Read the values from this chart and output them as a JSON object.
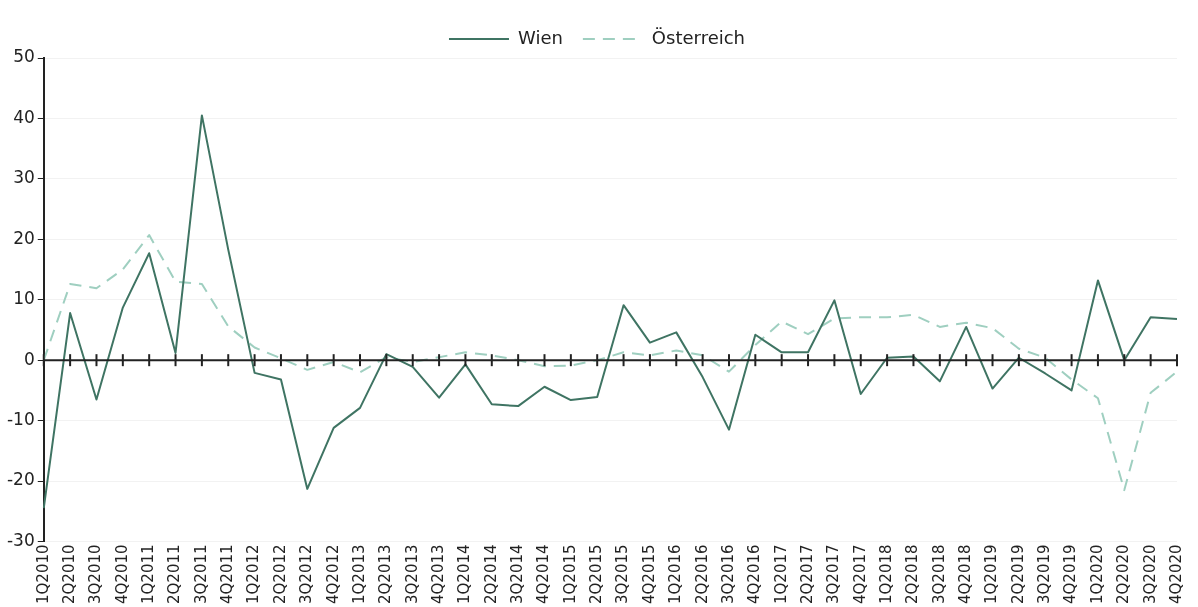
{
  "chart_data": {
    "type": "line",
    "categories": [
      "1Q2010",
      "2Q2010",
      "3Q2010",
      "4Q2010",
      "1Q2011",
      "2Q2011",
      "3Q2011",
      "4Q2011",
      "1Q2012",
      "2Q2012",
      "3Q2012",
      "4Q2012",
      "1Q2013",
      "2Q2013",
      "3Q2013",
      "4Q2013",
      "1Q2014",
      "2Q2014",
      "3Q2014",
      "4Q2014",
      "1Q2015",
      "2Q2015",
      "3Q2015",
      "4Q2015",
      "1Q2016",
      "2Q2016",
      "3Q2016",
      "4Q2016",
      "1Q2017",
      "2Q2017",
      "3Q2017",
      "4Q2017",
      "1Q2018",
      "2Q2018",
      "3Q2018",
      "4Q2018",
      "1Q2019",
      "2Q2019",
      "3Q2019",
      "4Q2019",
      "1Q2020",
      "2Q2020",
      "3Q2020",
      "4Q2020"
    ],
    "series": [
      {
        "name": "Wien",
        "color": "#3f7463",
        "line_style": "solid",
        "values": [
          -24.5,
          7.8,
          -6.5,
          8.7,
          17.7,
          1.2,
          40.5,
          18.3,
          -2.1,
          -3.2,
          -21.3,
          -11.2,
          -7.9,
          1,
          -1.1,
          -6.2,
          -0.7,
          -7.3,
          -7.6,
          -4.4,
          -6.6,
          -6.1,
          9.1,
          2.9,
          4.6,
          -2.8,
          -11.5,
          4.2,
          1.3,
          1.3,
          9.9,
          -5.6,
          0.4,
          0.6,
          -3.5,
          5.5,
          -4.7,
          0.4,
          -2.2,
          -5,
          13.2,
          0,
          7.1,
          6.8
        ]
      },
      {
        "name": "Österreich",
        "color": "#9fcfc0",
        "line_style": "dashed",
        "values": [
          0,
          12.6,
          11.9,
          15,
          20.7,
          13,
          12.6,
          5.6,
          2.1,
          0.3,
          -1.6,
          -0.3,
          -2,
          0.5,
          -0.3,
          0.5,
          1.3,
          0.8,
          0,
          -1,
          -0.9,
          0,
          1.3,
          0.8,
          1.6,
          0.8,
          -1.9,
          2.5,
          6.4,
          4.3,
          6.9,
          7.1,
          7.1,
          7.5,
          5.5,
          6.2,
          5.3,
          1.9,
          0.4,
          -3.2,
          -6.3,
          -21.5,
          -5.4,
          -1.9
        ]
      }
    ],
    "ylim": [
      -30,
      50
    ],
    "yticks": [
      -30,
      -20,
      -10,
      0,
      10,
      20,
      30,
      40,
      50
    ],
    "grid": "y",
    "legend": "top",
    "marker": "none"
  }
}
